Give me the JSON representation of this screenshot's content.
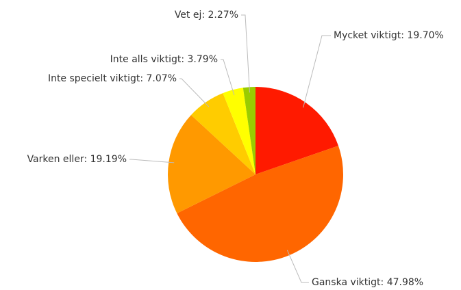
{
  "chart_data": {
    "type": "pie",
    "values": [
      19.7,
      47.98,
      19.19,
      7.07,
      3.79,
      2.27
    ],
    "value_labels": [
      "Mycket viktigt: 19.70%",
      "Ganska viktigt: 47.98%",
      "Varken eller: 19.19%",
      "Inte specielt viktigt: 7.07%",
      "Inte alls viktigt: 3.79%",
      "Vet ej: 2.27%"
    ],
    "colors": [
      "#ff1a00",
      "#ff6600",
      "#ff9900",
      "#ffcc00",
      "#ffff00",
      "#99cc00"
    ]
  }
}
